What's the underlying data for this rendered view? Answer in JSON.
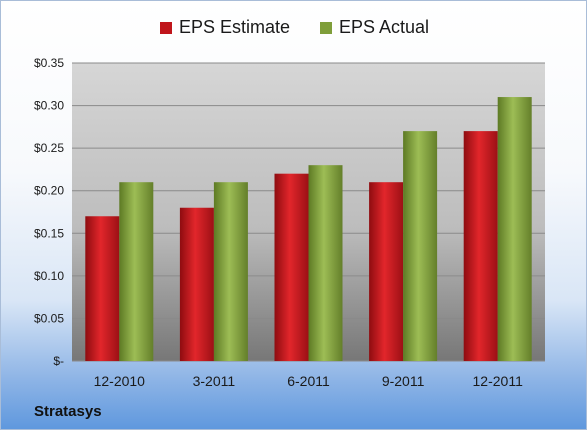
{
  "legend": {
    "estimate_label": "EPS Estimate",
    "actual_label": "EPS Actual"
  },
  "footer": {
    "company": "Stratasys"
  },
  "colors": {
    "estimate": "#c0151b",
    "actual": "#7f9e3a",
    "plot_bg_top": "#d4d4d4",
    "plot_bg_bottom": "#7a7a7a"
  },
  "chart_data": {
    "type": "bar",
    "categories": [
      "12-2010",
      "3-2011",
      "6-2011",
      "9-2011",
      "12-2011"
    ],
    "series": [
      {
        "name": "EPS Estimate",
        "values": [
          0.17,
          0.18,
          0.22,
          0.21,
          0.27
        ]
      },
      {
        "name": "EPS Actual",
        "values": [
          0.21,
          0.21,
          0.23,
          0.27,
          0.31
        ]
      }
    ],
    "ylim": [
      0,
      0.35
    ],
    "yticks": [
      0,
      0.05,
      0.1,
      0.15,
      0.2,
      0.25,
      0.3,
      0.35
    ],
    "ytick_labels": [
      "$-",
      "$0.05",
      "$0.10",
      "$0.15",
      "$0.20",
      "$0.25",
      "$0.30",
      "$0.35"
    ],
    "grid": true,
    "legend_position": "top"
  }
}
